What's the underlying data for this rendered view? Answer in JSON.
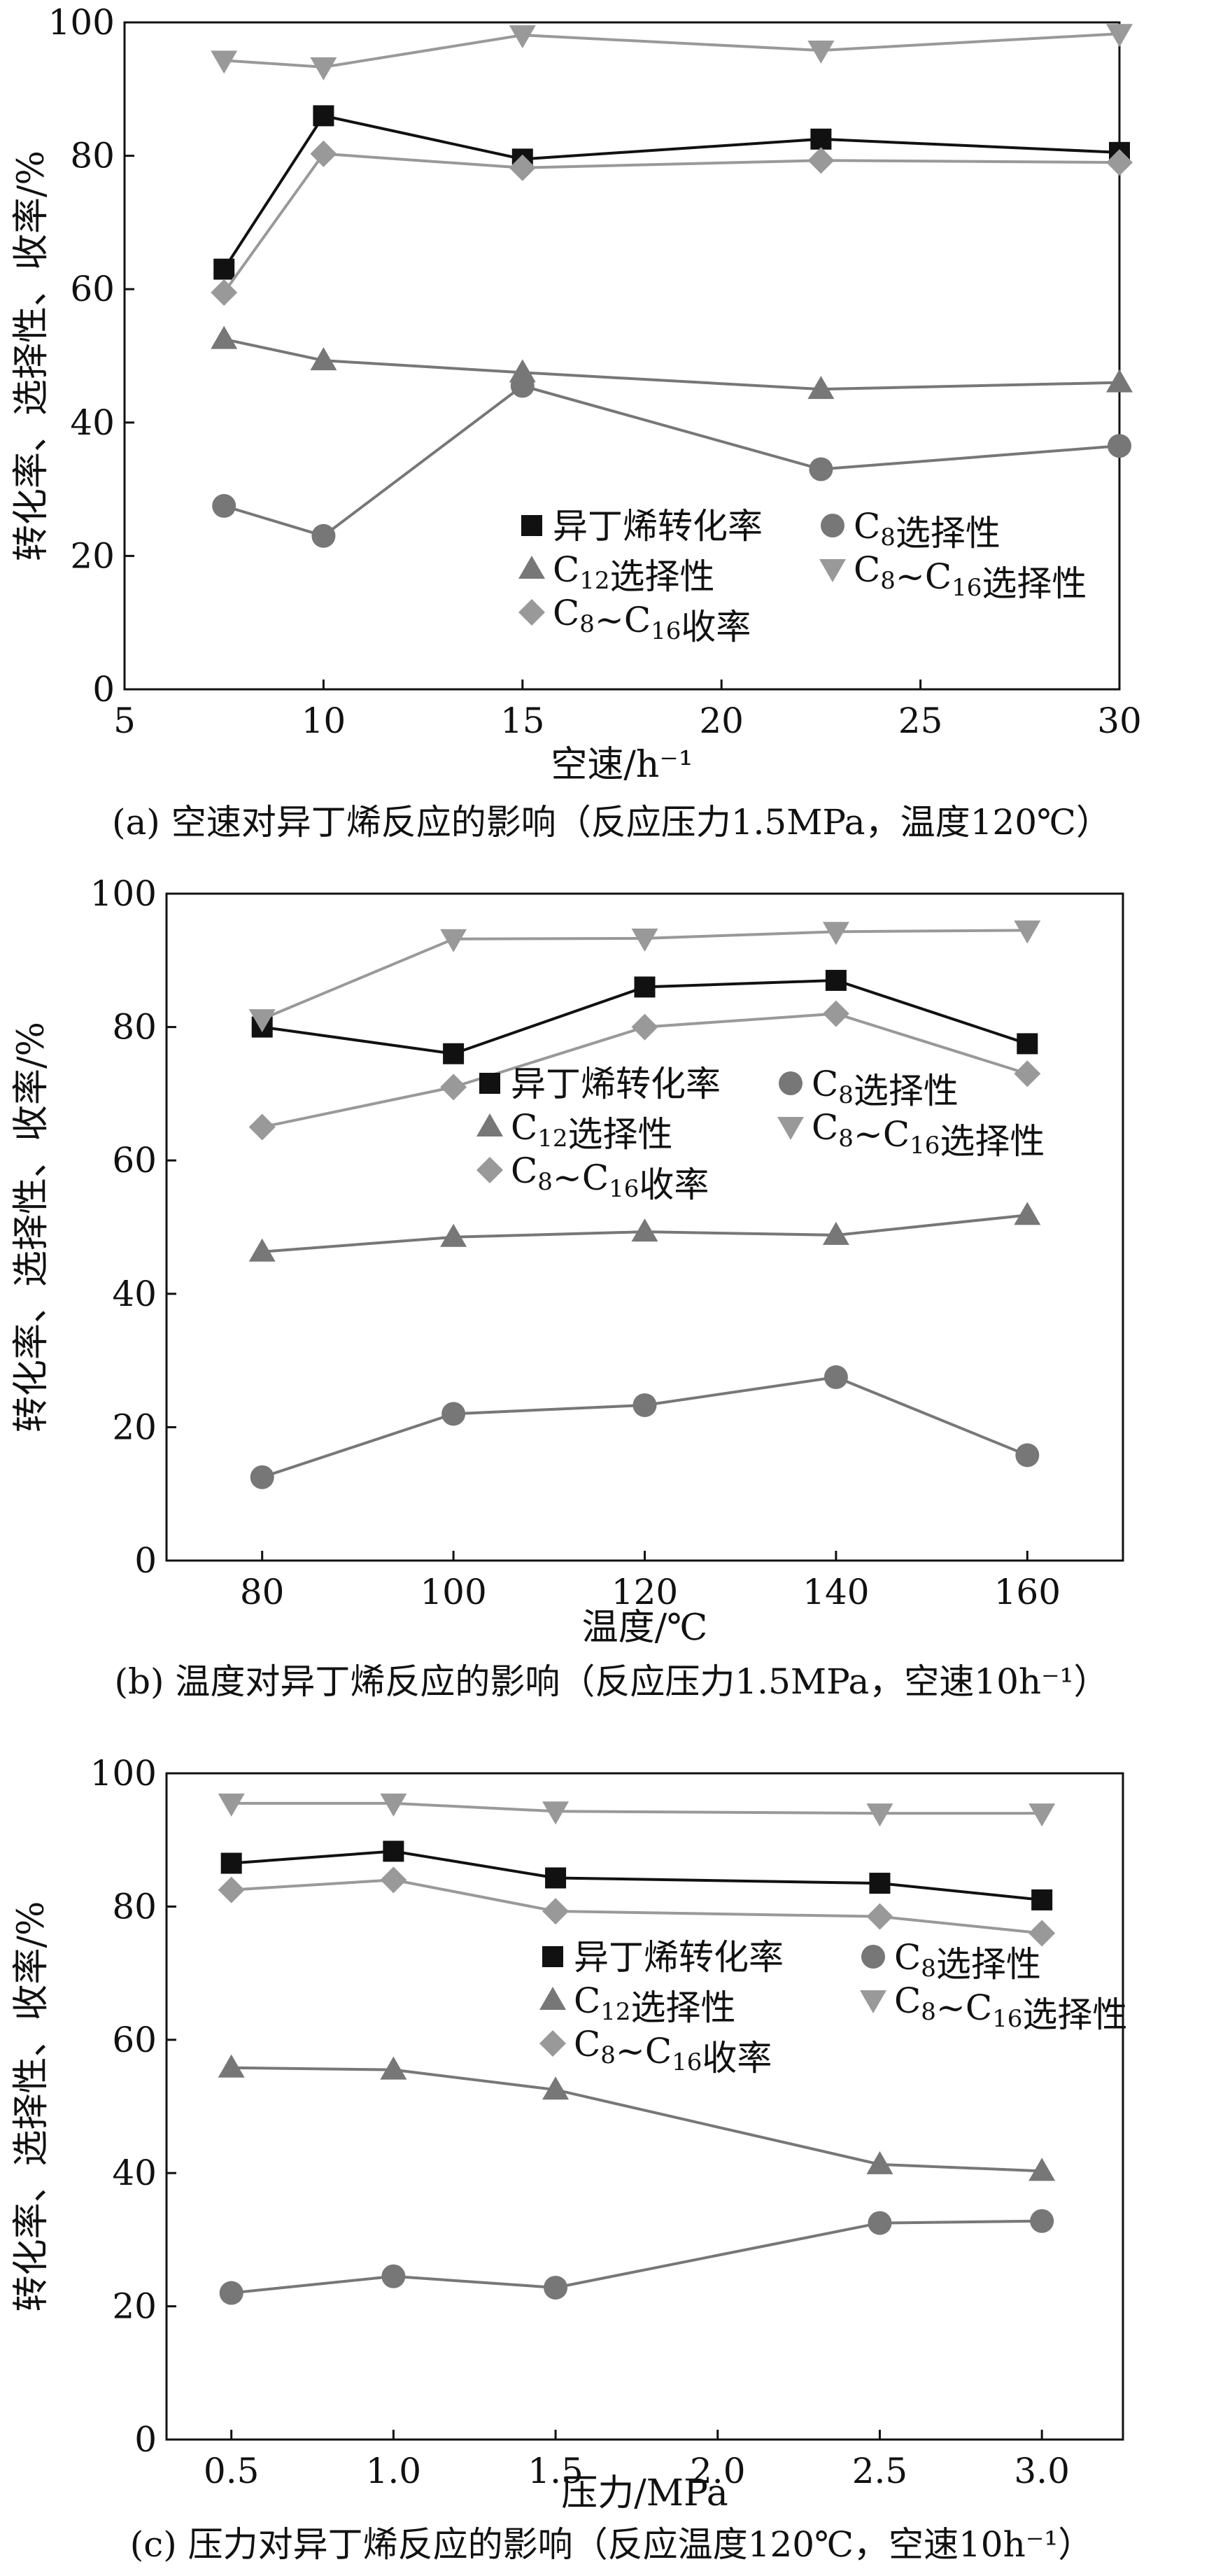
{
  "figure": {
    "panels": [
      {
        "id": "a",
        "caption": "(a) 空速对异丁烯反应的影响（反应压力1.5MPa，温度120℃）"
      },
      {
        "id": "b",
        "caption": "(b) 温度对异丁烯反应的影响（反应压力1.5MPa，空速10h⁻¹）"
      },
      {
        "id": "c",
        "caption": "(c) 压力对异丁烯反应的影响（反应温度120℃，空速10h⁻¹）"
      }
    ]
  },
  "chart_data": [
    {
      "type": "line",
      "ylabel": "转化率、选择性、收率/%",
      "xlabel": "空速/h⁻¹",
      "xlim": [
        5,
        30
      ],
      "ylim": [
        0,
        100
      ],
      "xticks": [
        "5",
        "10",
        "15",
        "20",
        "25",
        "30"
      ],
      "yticks": [
        "0",
        "20",
        "40",
        "60",
        "80",
        "100"
      ],
      "grid": false,
      "legend_position": "center-right",
      "x": [
        7.5,
        10,
        15,
        22.5,
        30
      ],
      "series": [
        {
          "name": "异丁烯转化率",
          "marker": "square",
          "color": "#111111",
          "values": [
            63,
            86,
            79.5,
            82.5,
            80.5
          ]
        },
        {
          "name": "C8选择性",
          "marker": "circle",
          "color": "#777777",
          "values": [
            27.5,
            23,
            45.5,
            33,
            36.5
          ]
        },
        {
          "name": "C12选择性",
          "marker": "triangle-up",
          "color": "#777777",
          "values": [
            52.5,
            49.3,
            47.5,
            45,
            46
          ]
        },
        {
          "name": "C8~C16选择性",
          "marker": "triangle-down",
          "color": "#999999",
          "values": [
            94.3,
            93.3,
            98.1,
            95.8,
            98.3
          ]
        },
        {
          "name": "C8~C16收率",
          "marker": "diamond",
          "color": "#999999",
          "values": [
            59.5,
            80.3,
            78.2,
            79.3,
            79
          ]
        }
      ],
      "legend_layout": [
        [
          "异丁烯转化率",
          "C8选择性"
        ],
        [
          "C12选择性",
          "C8~C16选择性"
        ],
        [
          "C8~C16收率"
        ]
      ]
    },
    {
      "type": "line",
      "ylabel": "转化率、选择性、收率/%",
      "xlabel": "温度/℃",
      "xlim": [
        70,
        170
      ],
      "ylim": [
        0,
        100
      ],
      "xticks": [
        "80",
        "100",
        "120",
        "140",
        "160"
      ],
      "yticks": [
        "0",
        "20",
        "40",
        "60",
        "80",
        "100"
      ],
      "grid": false,
      "legend_position": "center",
      "x": [
        80,
        100,
        120,
        140,
        160
      ],
      "series": [
        {
          "name": "异丁烯转化率",
          "marker": "square",
          "color": "#111111",
          "values": [
            80,
            76,
            86,
            87,
            77.5
          ]
        },
        {
          "name": "C8选择性",
          "marker": "circle",
          "color": "#777777",
          "values": [
            12.5,
            22,
            23.3,
            27.5,
            15.8
          ]
        },
        {
          "name": "C12选择性",
          "marker": "triangle-up",
          "color": "#777777",
          "values": [
            46.3,
            48.5,
            49.3,
            48.8,
            51.8
          ]
        },
        {
          "name": "C8~C16选择性",
          "marker": "triangle-down",
          "color": "#999999",
          "values": [
            81.2,
            93.2,
            93.3,
            94.3,
            94.5
          ]
        },
        {
          "name": "C8~C16收率",
          "marker": "diamond",
          "color": "#999999",
          "values": [
            65,
            71,
            80,
            82,
            73
          ]
        }
      ],
      "legend_layout": [
        [
          "异丁烯转化率",
          "C8选择性"
        ],
        [
          "C12选择性",
          "C8~C16选择性"
        ],
        [
          "C8~C16收率"
        ]
      ]
    },
    {
      "type": "line",
      "ylabel": "转化率、选择性、收率/%",
      "xlabel": "压力/MPa",
      "xlim": [
        0.3,
        3.25
      ],
      "ylim": [
        0,
        100
      ],
      "xticks": [
        "0.5",
        "1.0",
        "1.5",
        "2.0",
        "2.5",
        "3.0"
      ],
      "yticks": [
        "0",
        "20",
        "40",
        "60",
        "80",
        "100"
      ],
      "grid": false,
      "legend_position": "center-right",
      "x": [
        0.5,
        1.0,
        1.5,
        2.5,
        3.0
      ],
      "series": [
        {
          "name": "异丁烯转化率",
          "marker": "square",
          "color": "#111111",
          "values": [
            86.5,
            88.3,
            84.3,
            83.5,
            81
          ]
        },
        {
          "name": "C8选择性",
          "marker": "circle",
          "color": "#777777",
          "values": [
            22,
            24.5,
            22.8,
            32.5,
            32.8
          ]
        },
        {
          "name": "C12选择性",
          "marker": "triangle-up",
          "color": "#777777",
          "values": [
            55.8,
            55.5,
            52.5,
            41.3,
            40.3
          ]
        },
        {
          "name": "C8~C16选择性",
          "marker": "triangle-down",
          "color": "#999999",
          "values": [
            95.5,
            95.5,
            94.3,
            94,
            94
          ]
        },
        {
          "name": "C8~C16收率",
          "marker": "diamond",
          "color": "#999999",
          "values": [
            82.5,
            84,
            79.3,
            78.5,
            76
          ]
        }
      ],
      "legend_layout": [
        [
          "异丁烯转化率",
          "C8选择性"
        ],
        [
          "C12选择性",
          "C8~C16选择性"
        ],
        [
          "C8~C16收率"
        ]
      ]
    }
  ]
}
